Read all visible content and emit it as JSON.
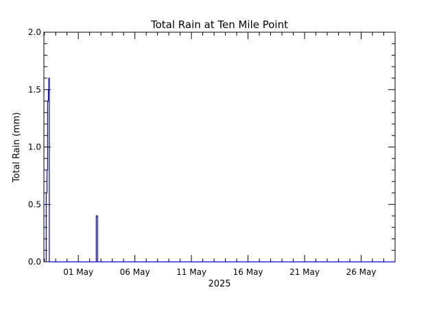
{
  "chart_data": {
    "type": "line",
    "title": "Total Rain at Ten Mile Point",
    "xlabel": "2025",
    "ylabel": "Total Rain (mm)",
    "ylim": [
      0.0,
      2.0
    ],
    "xlim": [
      "2025-04-27T23:00",
      "2025-05-29T00:00"
    ],
    "yticks": [
      "0.0",
      "0.5",
      "1.0",
      "1.5",
      "2.0"
    ],
    "xticks": [
      {
        "date": "2025-05-01",
        "label": "01 May"
      },
      {
        "date": "2025-05-06",
        "label": "06 May"
      },
      {
        "date": "2025-05-11",
        "label": "11 May"
      },
      {
        "date": "2025-05-16",
        "label": "16 May"
      },
      {
        "date": "2025-05-21",
        "label": "21 May"
      },
      {
        "date": "2025-05-26",
        "label": "26 May"
      }
    ],
    "grid": false,
    "series": [
      {
        "color": "#0000cc",
        "step": true,
        "points": [
          [
            "2025-04-28T04:00",
            0.0
          ],
          [
            "2025-04-28T04:00",
            0.6
          ],
          [
            "2025-04-28T05:30",
            0.6
          ],
          [
            "2025-04-28T05:30",
            0.8
          ],
          [
            "2025-04-28T07:00",
            0.8
          ],
          [
            "2025-04-28T07:00",
            1.4
          ],
          [
            "2025-04-28T08:30",
            1.4
          ],
          [
            "2025-04-28T08:30",
            1.5
          ],
          [
            "2025-04-28T09:30",
            1.5
          ],
          [
            "2025-04-28T09:30",
            1.6
          ],
          [
            "2025-04-28T10:30",
            1.6
          ],
          [
            "2025-04-28T10:30",
            0.0
          ],
          [
            "2025-05-02T14:00",
            0.0
          ],
          [
            "2025-05-02T14:00",
            0.4
          ],
          [
            "2025-05-02T17:00",
            0.4
          ],
          [
            "2025-05-02T17:00",
            0.0
          ],
          [
            "2025-05-29T00:00",
            0.0
          ]
        ]
      }
    ]
  }
}
